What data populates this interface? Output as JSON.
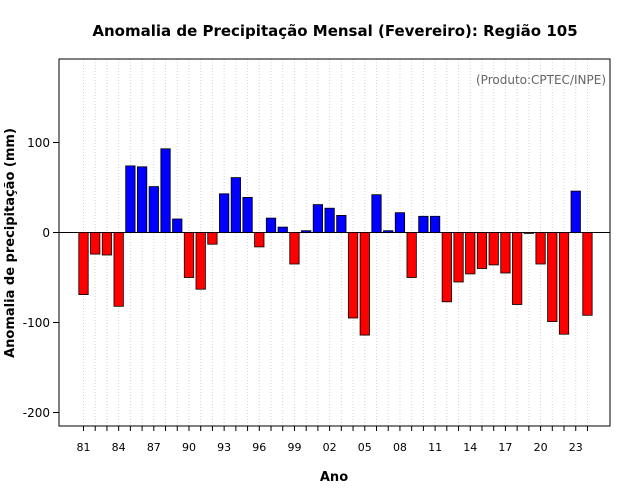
{
  "chart_data": {
    "type": "bar",
    "title": "Anomalia de Precipitação Mensal (Fevereiro): Região 105",
    "xlabel": "Ano",
    "ylabel": "Anomalia de precipitação (mm)",
    "credit": "(Produto:CPTEC/INPE)",
    "ylim": [
      -215,
      193
    ],
    "yticks": [
      -200,
      -100,
      0,
      100
    ],
    "positive_color": "#0000ff",
    "negative_color": "#ff0000",
    "categories": [
      "1981",
      "1982",
      "1983",
      "1984",
      "1985",
      "1986",
      "1987",
      "1988",
      "1989",
      "1990",
      "1991",
      "1992",
      "1993",
      "1994",
      "1995",
      "1996",
      "1997",
      "1998",
      "1999",
      "2000",
      "2001",
      "2002",
      "2003",
      "2004",
      "2005",
      "2006",
      "2007",
      "2008",
      "2009",
      "2010",
      "2011",
      "2012",
      "2013",
      "2014",
      "2015",
      "2016",
      "2017",
      "2018",
      "2019",
      "2020",
      "2021",
      "2022",
      "2023",
      "2024"
    ],
    "tick_labels": [
      "81",
      "",
      "",
      "84",
      "",
      "",
      "87",
      "",
      "",
      "90",
      "",
      "",
      "93",
      "",
      "",
      "96",
      "",
      "",
      "99",
      "",
      "",
      "02",
      "",
      "",
      "05",
      "",
      "",
      "08",
      "",
      "",
      "11",
      "",
      "",
      "14",
      "",
      "",
      "17",
      "",
      "",
      "20",
      "",
      "",
      "23",
      ""
    ],
    "values": [
      -69,
      -24,
      -25,
      -82,
      74,
      73,
      51,
      93,
      15,
      -50,
      -63,
      -13,
      43,
      61,
      39,
      -16,
      16,
      6,
      -35,
      2,
      31,
      27,
      19,
      -95,
      -114,
      42,
      2,
      22,
      -50,
      18,
      18,
      -77,
      -55,
      -46,
      -40,
      -36,
      -45,
      -80,
      -1,
      -35,
      -99,
      -113,
      46,
      -92
    ]
  }
}
